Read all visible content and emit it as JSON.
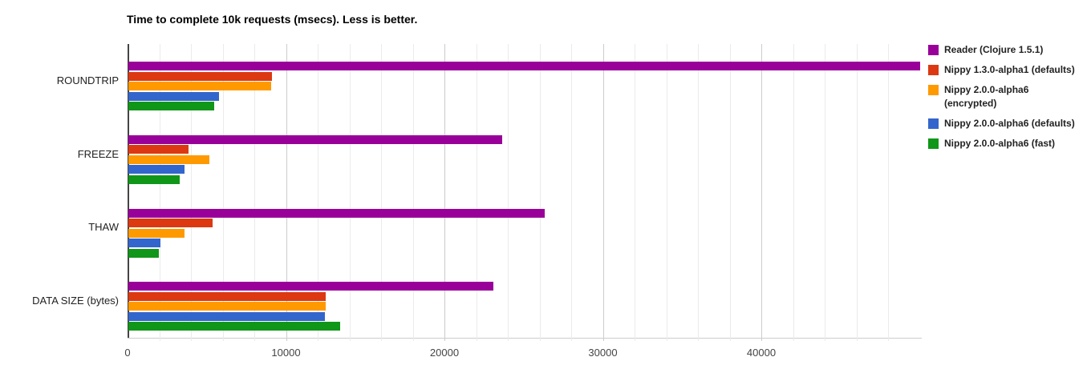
{
  "title": "Time to complete 10k requests (msecs). Less is better.",
  "chart_data": {
    "type": "bar",
    "orientation": "horizontal",
    "title": "Time to complete 10k requests (msecs). Less is better.",
    "xlabel": "",
    "ylabel": "",
    "grid": true,
    "legend_position": "right",
    "xlim": [
      0,
      50000
    ],
    "minor_grid_step": 2000,
    "major_grid_step": 10000,
    "x_ticks": [
      0,
      10000,
      20000,
      30000,
      40000
    ],
    "x_tick_labels": [
      "0",
      "10000",
      "20000",
      "30000",
      "40000"
    ],
    "categories": [
      "ROUNDTRIP",
      "FREEZE",
      "THAW",
      "DATA SIZE (bytes)"
    ],
    "series": [
      {
        "name": "Reader (Clojure 1.5.1)",
        "legend_lines": [
          "Reader (Clojure 1.5.1)"
        ],
        "color": "#990099",
        "values": [
          49950,
          23600,
          26300,
          23050
        ]
      },
      {
        "name": "Nippy 1.3.0-alpha1 (defaults)",
        "legend_lines": [
          "Nippy 1.3.0-alpha1 (defaults)"
        ],
        "color": "#DC3912",
        "values": [
          9050,
          3800,
          5300,
          12450
        ]
      },
      {
        "name": "Nippy 2.0.0-alpha6 (encrypted)",
        "legend_lines": [
          "Nippy 2.0.0-alpha6",
          "(encrypted)"
        ],
        "color": "#FF9900",
        "values": [
          9000,
          5100,
          3550,
          12450
        ]
      },
      {
        "name": "Nippy 2.0.0-alpha6 (defaults)",
        "legend_lines": [
          "Nippy 2.0.0-alpha6 (defaults)"
        ],
        "color": "#3366CC",
        "values": [
          5700,
          3550,
          2000,
          12400
        ]
      },
      {
        "name": "Nippy 2.0.0-alpha6 (fast)",
        "legend_lines": [
          "Nippy 2.0.0-alpha6 (fast)"
        ],
        "color": "#109618",
        "values": [
          5400,
          3250,
          1900,
          13350
        ]
      }
    ]
  },
  "colors": {
    "axis_baseline": "#444444",
    "major_grid": "#cccccc",
    "minor_grid": "#ebebeb",
    "tick_label": "#444444",
    "category_label": "#222222",
    "legend_text": "#222222",
    "title_text": "#000000"
  }
}
